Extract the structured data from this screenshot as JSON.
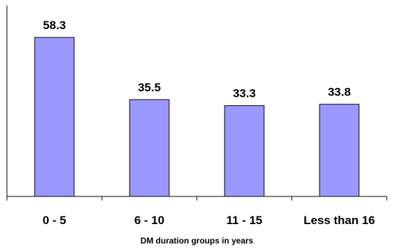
{
  "chart_data": {
    "type": "bar",
    "title": "",
    "xlabel": "DM duration groups in years",
    "ylabel": "",
    "categories": [
      "0 - 5",
      "6 - 10",
      "11 - 15",
      "Less than 16"
    ],
    "values": [
      58.3,
      35.5,
      33.3,
      33.8
    ],
    "value_labels": [
      "58.3",
      "35.5",
      "33.3",
      "33.8"
    ],
    "ylim": [
      0,
      70
    ],
    "grid": false,
    "legend": "none",
    "bar_color": "#9999FF",
    "bar_stroke": "#000000"
  }
}
